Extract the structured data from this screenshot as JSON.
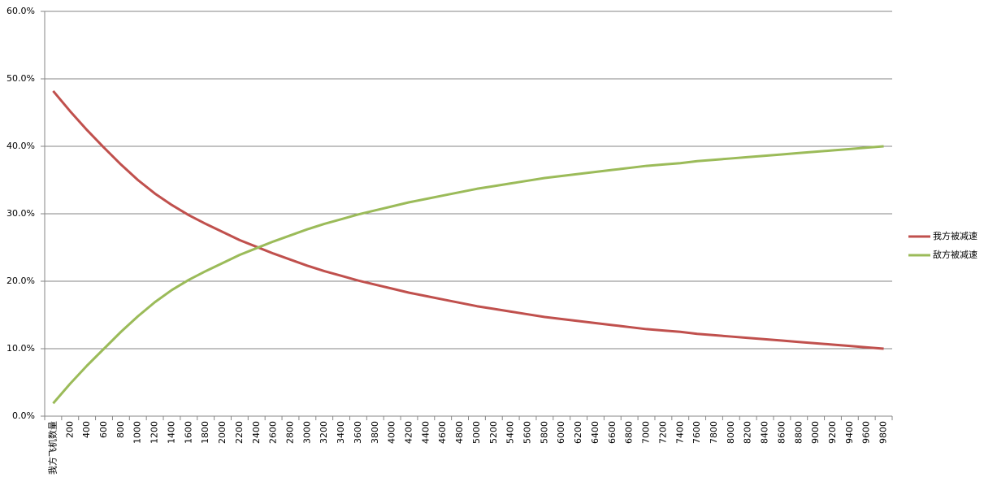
{
  "chart_data": {
    "type": "line",
    "categories": [
      "我方飞机数量",
      "200",
      "400",
      "600",
      "800",
      "1000",
      "1200",
      "1400",
      "1600",
      "1800",
      "2000",
      "2200",
      "2400",
      "2600",
      "2800",
      "3000",
      "3200",
      "3400",
      "3600",
      "3800",
      "4000",
      "4200",
      "4400",
      "4600",
      "4800",
      "5000",
      "5200",
      "5400",
      "5600",
      "5800",
      "6000",
      "6200",
      "6400",
      "6600",
      "6800",
      "7000",
      "7200",
      "7400",
      "7600",
      "7800",
      "8000",
      "8200",
      "8400",
      "8600",
      "8800",
      "9000",
      "9200",
      "9400",
      "9600",
      "9800"
    ],
    "series": [
      {
        "name": "我方被减速",
        "color": "#c0504d",
        "values": [
          48.2,
          45.2,
          42.4,
          39.8,
          37.3,
          35.0,
          33.0,
          31.3,
          29.8,
          28.5,
          27.3,
          26.1,
          25.1,
          24.1,
          23.2,
          22.3,
          21.5,
          20.8,
          20.1,
          19.5,
          18.9,
          18.3,
          17.8,
          17.3,
          16.8,
          16.3,
          15.9,
          15.5,
          15.1,
          14.7,
          14.4,
          14.1,
          13.8,
          13.5,
          13.2,
          12.9,
          12.7,
          12.5,
          12.2,
          12.0,
          11.8,
          11.6,
          11.4,
          11.2,
          11.0,
          10.8,
          10.6,
          10.4,
          10.2,
          10.0
        ]
      },
      {
        "name": "敌方被减速",
        "color": "#9bbb59",
        "values": [
          1.9,
          4.8,
          7.5,
          10.0,
          12.5,
          14.8,
          16.9,
          18.7,
          20.2,
          21.5,
          22.7,
          23.9,
          24.9,
          25.9,
          26.8,
          27.7,
          28.5,
          29.2,
          29.9,
          30.5,
          31.1,
          31.7,
          32.2,
          32.7,
          33.2,
          33.7,
          34.1,
          34.5,
          34.9,
          35.3,
          35.6,
          35.9,
          36.2,
          36.5,
          36.8,
          37.1,
          37.3,
          37.5,
          37.8,
          38.0,
          38.2,
          38.4,
          38.6,
          38.8,
          39.0,
          39.2,
          39.4,
          39.6,
          39.8,
          40.0
        ]
      }
    ],
    "ylim": [
      0,
      60
    ],
    "yticks": [
      {
        "value": 0,
        "label": "0.0%"
      },
      {
        "value": 10,
        "label": "10.0%"
      },
      {
        "value": 20,
        "label": "20.0%"
      },
      {
        "value": 30,
        "label": "30.0%"
      },
      {
        "value": 40,
        "label": "40.0%"
      },
      {
        "value": 50,
        "label": "50.0%"
      },
      {
        "value": 60,
        "label": "60.0%"
      }
    ],
    "grid": true,
    "legend": "right"
  }
}
